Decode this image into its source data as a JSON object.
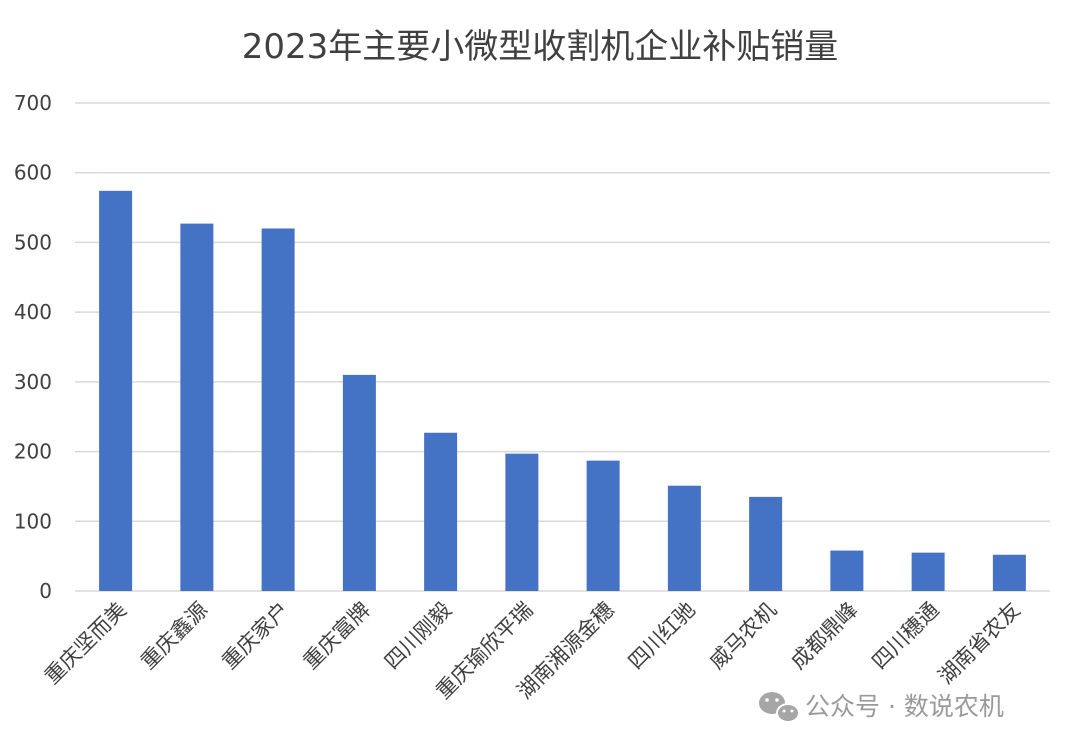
{
  "chart_data": {
    "type": "bar",
    "title": "2023年主要小微型收割机企业补贴销量",
    "xlabel": "",
    "ylabel": "",
    "ylim": [
      0,
      700
    ],
    "yticks": [
      0,
      100,
      200,
      300,
      400,
      500,
      600,
      700
    ],
    "grid": true,
    "categories": [
      "重庆坚而美",
      "重庆鑫源",
      "重庆家户",
      "重庆富牌",
      "四川刚毅",
      "重庆瑜欣平瑞",
      "湖南湘源金穗",
      "四川红驰",
      "威马农机",
      "成都鼎峰",
      "四川穗通",
      "湖南省农友"
    ],
    "values": [
      574,
      527,
      520,
      310,
      227,
      197,
      187,
      151,
      135,
      58,
      55,
      52
    ],
    "bar_color": "#4472c4"
  },
  "watermark": {
    "text": "公众号 · 数说农机",
    "icon": "wechat-icon"
  }
}
